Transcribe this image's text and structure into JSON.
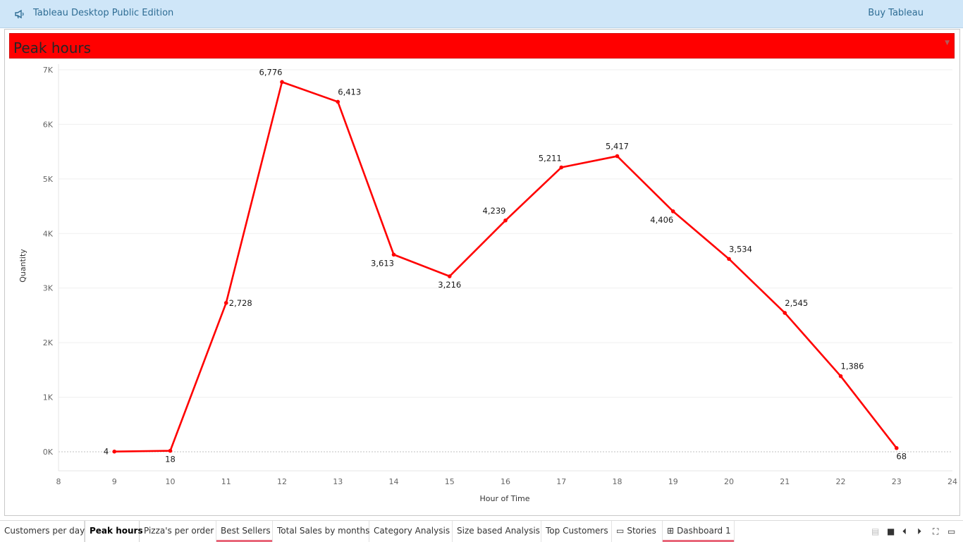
{
  "app": {
    "title": "Tableau Desktop Public Edition",
    "buy_label": "Buy Tableau",
    "icon": "megaphone-icon"
  },
  "worksheet": {
    "title": "Peak hours",
    "title_bg": "#ff0000"
  },
  "chart_data": {
    "type": "line",
    "title": "Peak hours",
    "xlabel": "Hour of Time",
    "ylabel": "Quantity",
    "x": [
      9,
      10,
      11,
      12,
      13,
      14,
      15,
      16,
      17,
      18,
      19,
      20,
      21,
      22,
      23
    ],
    "series": [
      {
        "values": [
          4,
          18,
          2728,
          6776,
          6413,
          3613,
          3216,
          4239,
          5211,
          5417,
          4406,
          3534,
          2545,
          1386,
          68
        ],
        "labels": [
          "4",
          "18",
          "2,728",
          "6,776",
          "6,413",
          "3,613",
          "3,216",
          "4,239",
          "5,211",
          "5,417",
          "4,406",
          "3,534",
          "2,545",
          "1,386",
          "68"
        ],
        "color": "#ff0000"
      }
    ],
    "xlim": [
      8,
      24
    ],
    "ylim": [
      0,
      7000
    ],
    "xticks": [
      "8",
      "9",
      "10",
      "11",
      "12",
      "13",
      "14",
      "15",
      "16",
      "17",
      "18",
      "19",
      "20",
      "21",
      "22",
      "23",
      "24"
    ],
    "yticks": [
      "0K",
      "1K",
      "2K",
      "3K",
      "4K",
      "5K",
      "6K",
      "7K"
    ],
    "grid": true
  },
  "tabs": [
    {
      "label": "Customers per day",
      "active": false,
      "underline": false
    },
    {
      "label": "Peak hours",
      "active": true,
      "underline": false
    },
    {
      "label": "Pizza's per order",
      "active": false,
      "underline": false
    },
    {
      "label": "Best Sellers",
      "active": false,
      "underline": true
    },
    {
      "label": "Total Sales by months",
      "active": false,
      "underline": false
    },
    {
      "label": "Category Analysis",
      "active": false,
      "underline": false
    },
    {
      "label": "Size based Analysis",
      "active": false,
      "underline": false
    },
    {
      "label": "Top Customers",
      "active": false,
      "underline": false
    },
    {
      "label": "Stories",
      "active": false,
      "underline": false,
      "icon": "book-icon"
    },
    {
      "label": "Dashboard 1",
      "active": false,
      "underline": true,
      "icon": "dashboard-icon"
    }
  ],
  "nav_controls": [
    "show-filmstrip-icon",
    "show-tabs-icon",
    "previous-sheet-icon",
    "next-sheet-icon",
    "fullscreen-icon",
    "presentation-mode-icon"
  ],
  "colors": {
    "accent": "#ff0000",
    "topbar": "#cfe6f8",
    "tab_underline": "#e8677a"
  }
}
